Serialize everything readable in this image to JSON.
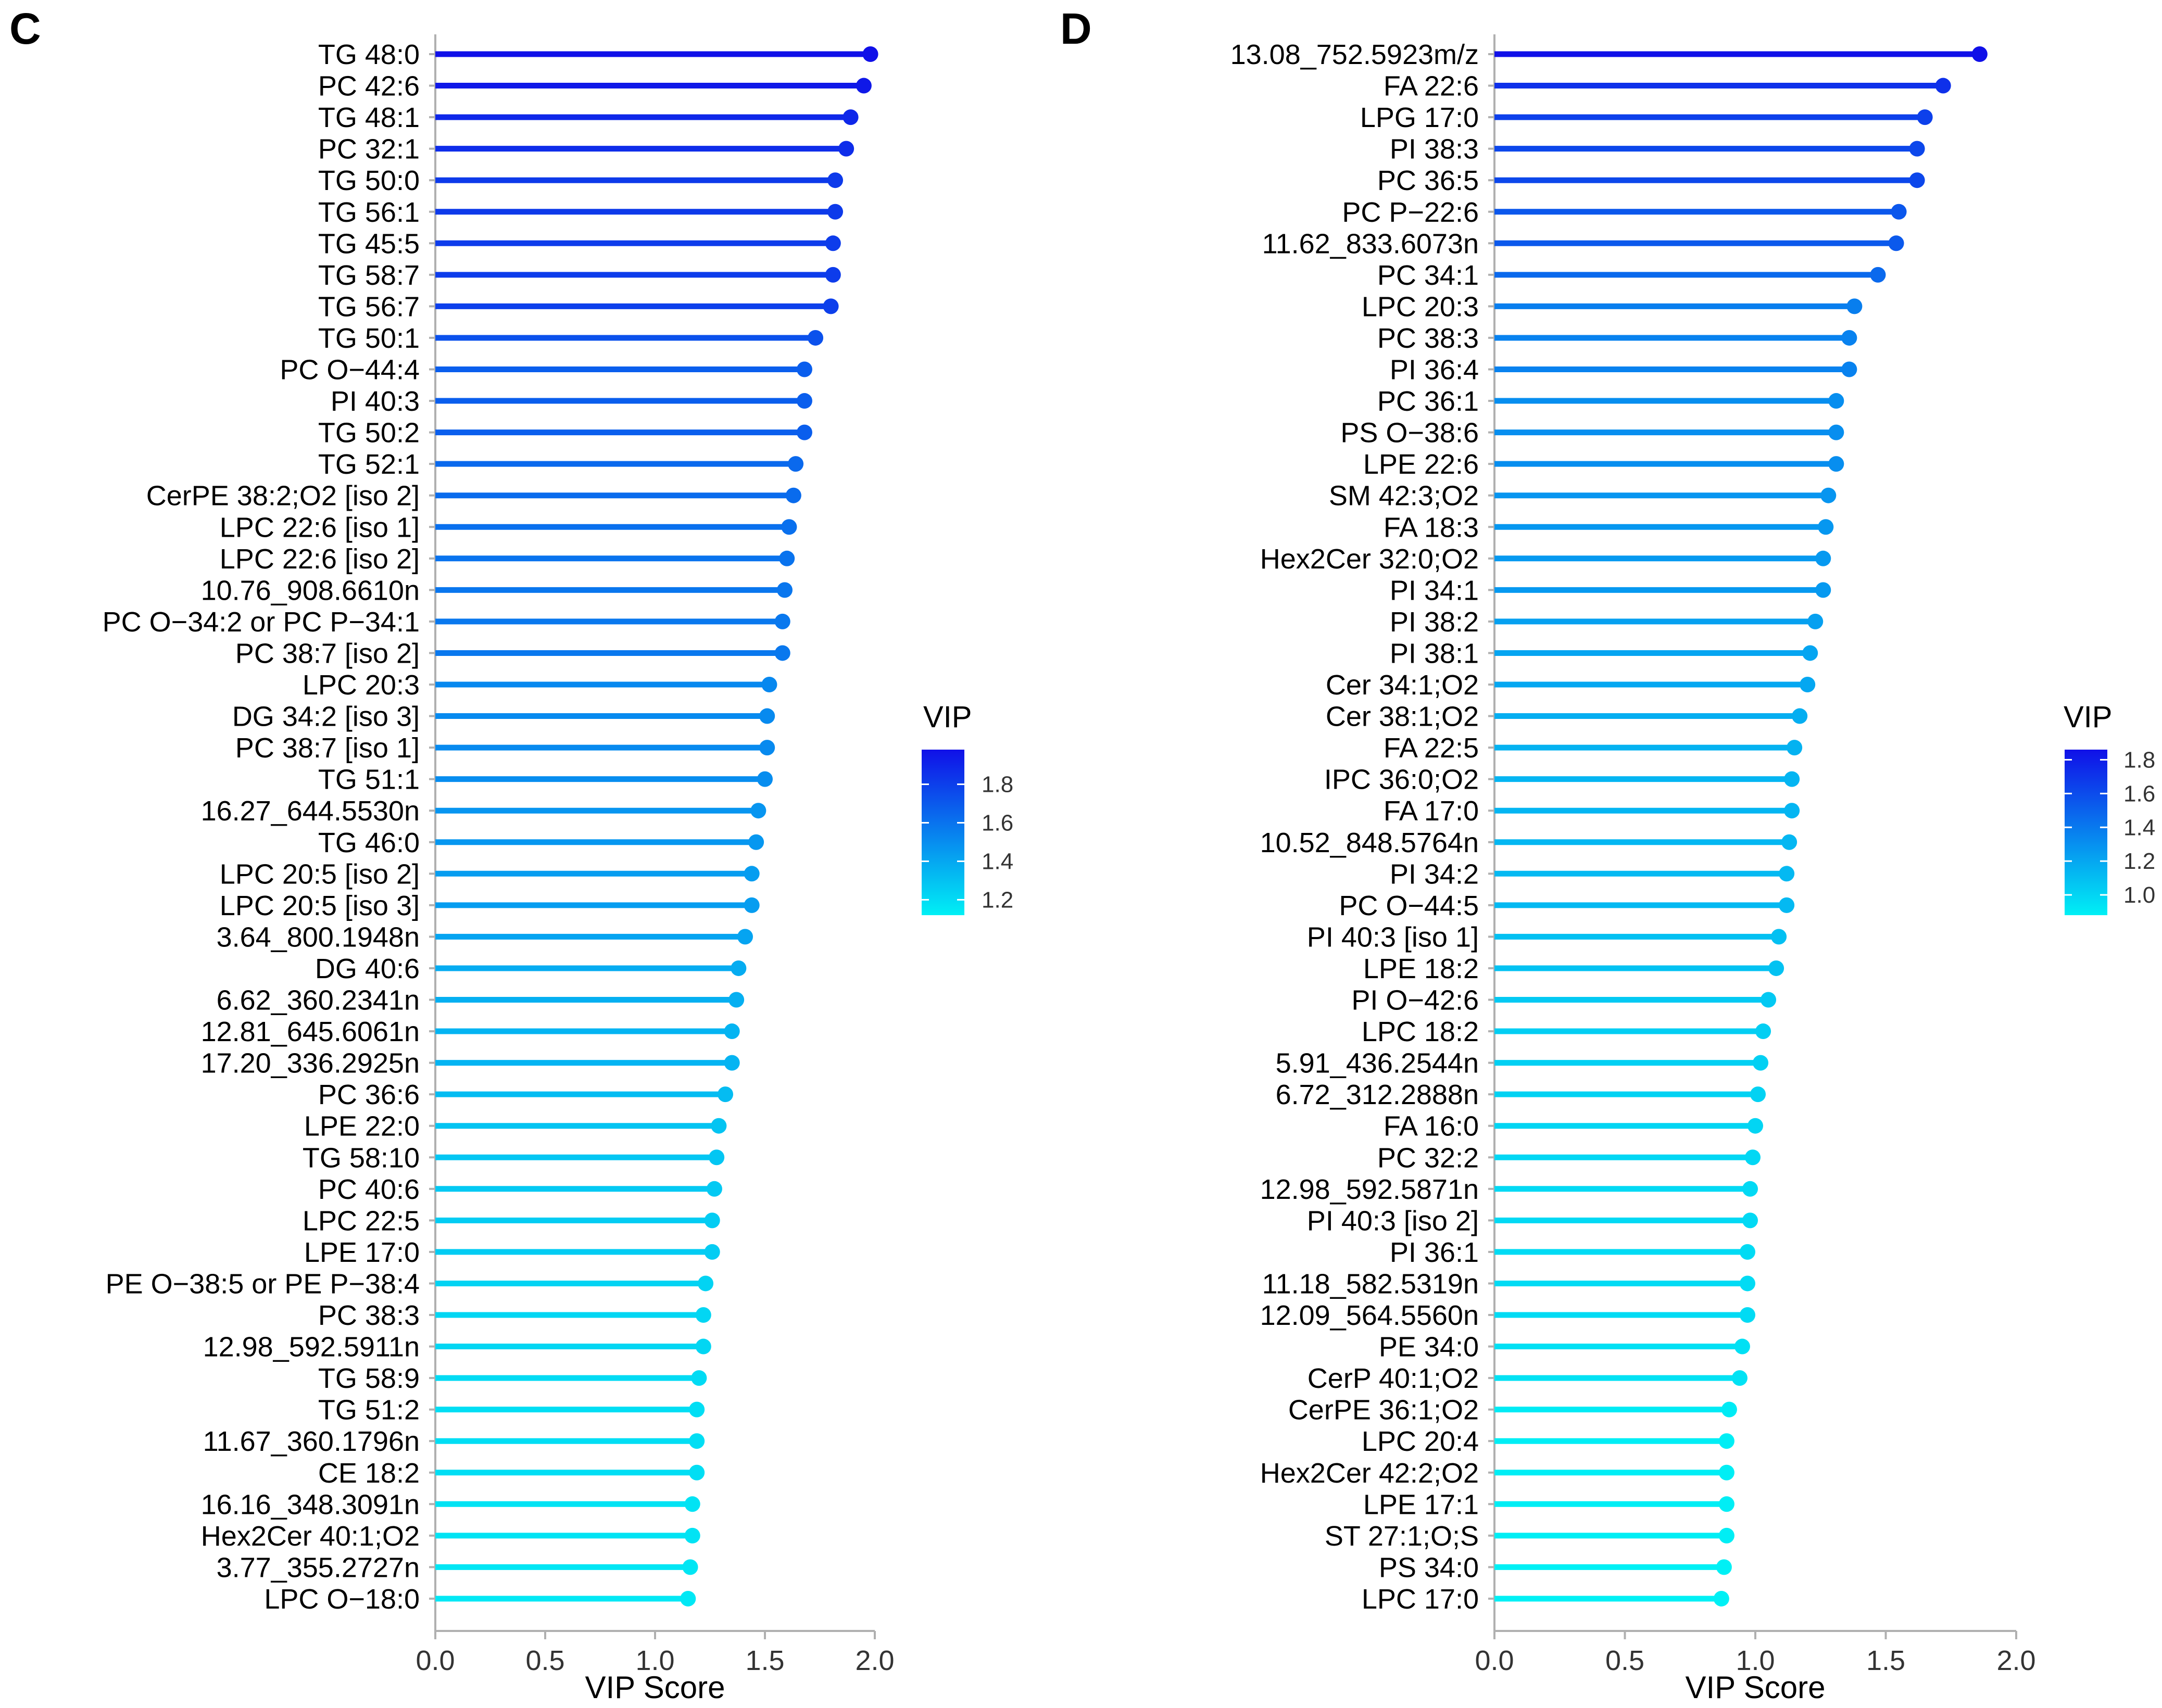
{
  "chart_data": [
    {
      "panel": "C",
      "type": "lollipop",
      "xlabel": "VIP Score",
      "xlim": [
        0.0,
        2.0
      ],
      "xticks": [
        "0.0",
        "0.5",
        "1.0",
        "1.5",
        "2.0"
      ],
      "colorbar": {
        "title": "VIP",
        "range": [
          1.12,
          1.98
        ],
        "ticks": [
          "1.8",
          "1.6",
          "1.4",
          "1.2"
        ],
        "low_color": "#00f0f5",
        "high_color": "#1010e8"
      },
      "categories": [
        "TG 48:0",
        "PC 42:6",
        "TG 48:1",
        "PC 32:1",
        "TG 50:0",
        "TG 56:1",
        "TG 45:5",
        "TG 58:7",
        "TG 56:7",
        "TG 50:1",
        "PC O−44:4",
        "PI 40:3",
        "TG 50:2",
        "TG 52:1",
        "CerPE 38:2;O2 [iso 2]",
        "LPC 22:6 [iso 1]",
        "LPC 22:6 [iso 2]",
        "10.76_908.6610n",
        "PC O−34:2 or PC P−34:1",
        "PC 38:7 [iso 2]",
        "LPC 20:3",
        "DG 34:2 [iso 3]",
        "PC 38:7 [iso 1]",
        "TG 51:1",
        "16.27_644.5530n",
        "TG 46:0",
        "LPC 20:5 [iso 2]",
        "LPC 20:5 [iso 3]",
        "3.64_800.1948n",
        "DG 40:6",
        "6.62_360.2341n",
        "12.81_645.6061n",
        "17.20_336.2925n",
        "PC 36:6",
        "LPE 22:0",
        "TG 58:10",
        "PC 40:6",
        "LPC 22:5",
        "LPE 17:0",
        "PE O−38:5 or PE P−38:4",
        "PC 38:3",
        "12.98_592.5911n",
        "TG 58:9",
        "TG 51:2",
        "11.67_360.1796n",
        "CE 18:2",
        "16.16_348.3091n",
        "Hex2Cer 40:1;O2",
        "3.77_355.2727n",
        "LPC O−18:0"
      ],
      "values": [
        1.98,
        1.95,
        1.89,
        1.87,
        1.82,
        1.82,
        1.81,
        1.81,
        1.8,
        1.73,
        1.68,
        1.68,
        1.68,
        1.64,
        1.63,
        1.61,
        1.6,
        1.59,
        1.58,
        1.58,
        1.52,
        1.51,
        1.51,
        1.5,
        1.47,
        1.46,
        1.44,
        1.44,
        1.41,
        1.38,
        1.37,
        1.35,
        1.35,
        1.32,
        1.29,
        1.28,
        1.27,
        1.26,
        1.26,
        1.23,
        1.22,
        1.22,
        1.2,
        1.19,
        1.19,
        1.19,
        1.17,
        1.17,
        1.16,
        1.15
      ]
    },
    {
      "panel": "D",
      "type": "lollipop",
      "xlabel": "VIP Score",
      "xlim": [
        0.0,
        2.0
      ],
      "xticks": [
        "0.0",
        "0.5",
        "1.0",
        "1.5",
        "2.0"
      ],
      "colorbar": {
        "title": "VIP",
        "range": [
          0.88,
          1.86
        ],
        "ticks": [
          "1.8",
          "1.6",
          "1.4",
          "1.2",
          "1.0"
        ],
        "low_color": "#00f0f5",
        "high_color": "#1010e8"
      },
      "categories": [
        "13.08_752.5923m/z",
        "FA 22:6",
        "LPG 17:0",
        "PI 38:3",
        "PC 36:5",
        "PC P−22:6",
        "11.62_833.6073n",
        "PC 34:1",
        "LPC 20:3",
        "PC 38:3",
        "PI 36:4",
        "PC 36:1",
        "PS O−38:6",
        "LPE 22:6",
        "SM 42:3;O2",
        "FA 18:3",
        "Hex2Cer 32:0;O2",
        "PI 34:1",
        "PI 38:2",
        "PI 38:1",
        "Cer 34:1;O2",
        "Cer 38:1;O2",
        "FA 22:5",
        "IPC 36:0;O2",
        "FA 17:0",
        "10.52_848.5764n",
        "PI 34:2",
        "PC O−44:5",
        "PI 40:3 [iso 1]",
        "LPE 18:2",
        "PI O−42:6",
        "LPC 18:2",
        "5.91_436.2544n",
        "6.72_312.2888n",
        "FA 16:0",
        "PC 32:2",
        "12.98_592.5871n",
        "PI 40:3 [iso 2]",
        "PI 36:1",
        "11.18_582.5319n",
        "12.09_564.5560n",
        "PE 34:0",
        "CerP 40:1;O2",
        "CerPE 36:1;O2",
        "LPC 20:4",
        "Hex2Cer 42:2;O2",
        "LPE 17:1",
        "ST 27:1;O;S",
        "PS 34:0",
        "LPC 17:0"
      ],
      "values": [
        1.86,
        1.72,
        1.65,
        1.62,
        1.62,
        1.55,
        1.54,
        1.47,
        1.38,
        1.36,
        1.36,
        1.31,
        1.31,
        1.31,
        1.28,
        1.27,
        1.26,
        1.26,
        1.23,
        1.21,
        1.2,
        1.17,
        1.15,
        1.14,
        1.14,
        1.13,
        1.12,
        1.12,
        1.09,
        1.08,
        1.05,
        1.03,
        1.02,
        1.01,
        1.0,
        0.99,
        0.98,
        0.98,
        0.97,
        0.97,
        0.97,
        0.95,
        0.94,
        0.9,
        0.89,
        0.89,
        0.89,
        0.89,
        0.88,
        0.87
      ]
    }
  ]
}
